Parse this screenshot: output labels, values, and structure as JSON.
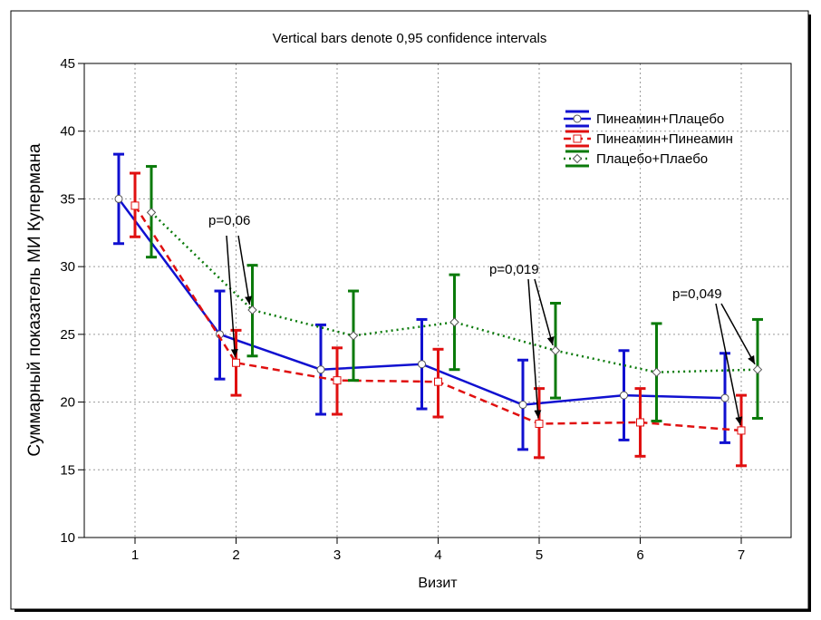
{
  "chart_data": {
    "type": "line",
    "title": "Vertical bars denote 0,95 confidence intervals",
    "xlabel": "Визит",
    "ylabel": "Суммарный показатель МИ Купермана",
    "x": [
      "1",
      "2",
      "3",
      "4",
      "5",
      "6",
      "7"
    ],
    "ylim": [
      10,
      45
    ],
    "yticks": [
      "10",
      "15",
      "20",
      "25",
      "30",
      "35",
      "40",
      "45"
    ],
    "grid": true,
    "legend_position": "top-right",
    "series": [
      {
        "name": "Пинеамин+Плацебо",
        "color": "#1010d0",
        "line_style": "solid",
        "marker": "circle",
        "values": [
          35.0,
          25.0,
          22.4,
          22.8,
          19.8,
          20.5,
          20.3
        ],
        "ci_low": [
          31.7,
          21.7,
          19.1,
          19.5,
          16.5,
          17.2,
          17.0
        ],
        "ci_high": [
          38.3,
          28.2,
          25.7,
          26.1,
          23.1,
          23.8,
          23.6
        ]
      },
      {
        "name": "Пинеамин+Пинеамин",
        "color": "#e01010",
        "line_style": "dashed",
        "marker": "square",
        "values": [
          34.5,
          22.9,
          21.6,
          21.5,
          18.4,
          18.5,
          17.9
        ],
        "ci_low": [
          32.2,
          20.5,
          19.1,
          18.9,
          15.9,
          16.0,
          15.3
        ],
        "ci_high": [
          36.9,
          25.3,
          24.0,
          23.9,
          21.0,
          21.0,
          20.5
        ]
      },
      {
        "name": "Плацебо+Плаебо",
        "color": "#0a7a0a",
        "line_style": "dotted",
        "marker": "diamond",
        "values": [
          34.0,
          26.8,
          24.9,
          25.9,
          23.8,
          22.2,
          22.4
        ],
        "ci_low": [
          30.7,
          23.4,
          21.6,
          22.4,
          20.3,
          18.6,
          18.8
        ],
        "ci_high": [
          37.4,
          30.1,
          28.2,
          29.4,
          27.3,
          25.8,
          26.1
        ]
      }
    ],
    "annotations": [
      {
        "text": "p=0,06",
        "visit": 2
      },
      {
        "text": "p=0,019",
        "visit": 5
      },
      {
        "text": "p=0,049",
        "visit": 7
      }
    ]
  }
}
